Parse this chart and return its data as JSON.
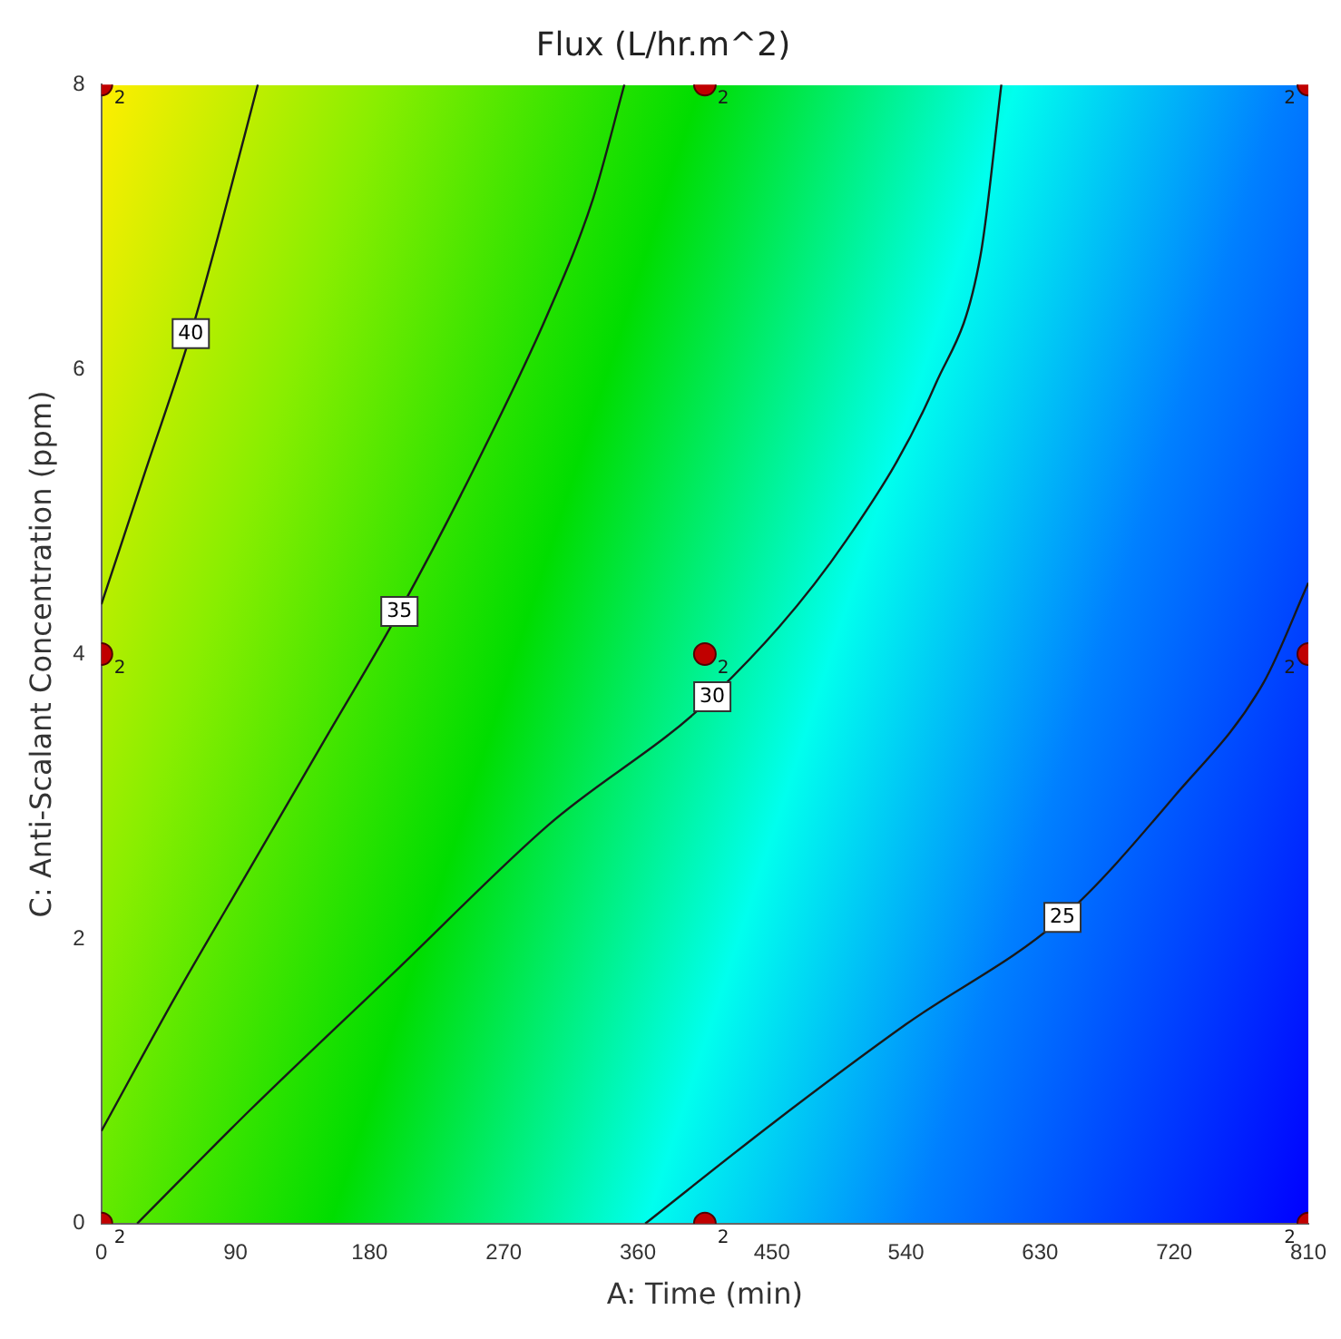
{
  "chart_data": {
    "type": "line",
    "title": "Flux (L/hr.m^2)",
    "xlabel": "A: Time (min)",
    "ylabel": "C: Anti-Scalant Concentration (ppm)",
    "xlim": [
      0,
      810
    ],
    "xticks": [
      0,
      90,
      180,
      270,
      360,
      450,
      540,
      630,
      720,
      810
    ],
    "ylim": [
      0,
      8
    ],
    "yticks": [
      0,
      2,
      4,
      6,
      8
    ],
    "grid": false,
    "legend": false,
    "series": [
      {
        "name": "40",
        "type": "line",
        "color": "#1a1a1a",
        "marker": "none",
        "x": [
          0,
          30,
          60,
          80,
          105
        ],
        "values": [
          4.35,
          5.3,
          6.25,
          7.0,
          8
        ]
      },
      {
        "name": "35",
        "type": "line",
        "color": "#1a1a1a",
        "marker": "none",
        "x": [
          0,
          50,
          100,
          150,
          200,
          250,
          300,
          330,
          351
        ],
        "values": [
          0.65,
          1.6,
          2.5,
          3.4,
          4.3,
          5.3,
          6.4,
          7.2,
          8
        ]
      },
      {
        "name": "30",
        "type": "line",
        "color": "#1a1a1a",
        "marker": "none",
        "x": [
          24,
          100,
          200,
          300,
          410,
          500,
          560,
          590,
          604
        ],
        "values": [
          0,
          0.8,
          1.8,
          2.8,
          3.7,
          4.8,
          5.9,
          6.8,
          8
        ]
      },
      {
        "name": "25",
        "type": "line",
        "color": "#1a1a1a",
        "marker": "none",
        "x": [
          365,
          450,
          540,
          645,
          720,
          780,
          810
        ],
        "values": [
          0,
          0.7,
          1.4,
          2.15,
          3.0,
          3.8,
          4.5
        ]
      },
      {
        "type": "scatter",
        "color": "#c00000",
        "marker": "circle",
        "x": [
          0,
          405,
          810,
          0,
          405,
          810,
          0,
          405,
          810
        ],
        "values": [
          0,
          0,
          0,
          4,
          4,
          4,
          8,
          8,
          8
        ]
      }
    ],
    "annotations": [
      {
        "text": "2",
        "x": 0,
        "y": 0
      },
      {
        "text": "2",
        "x": 405,
        "y": 0
      },
      {
        "text": "2",
        "x": 810,
        "y": 0
      },
      {
        "text": "2",
        "x": 0,
        "y": 4
      },
      {
        "text": "2",
        "x": 405,
        "y": 4
      },
      {
        "text": "2",
        "x": 810,
        "y": 4
      },
      {
        "text": "2",
        "x": 0,
        "y": 8
      },
      {
        "text": "2",
        "x": 405,
        "y": 8
      },
      {
        "text": "2",
        "x": 810,
        "y": 8
      }
    ]
  }
}
